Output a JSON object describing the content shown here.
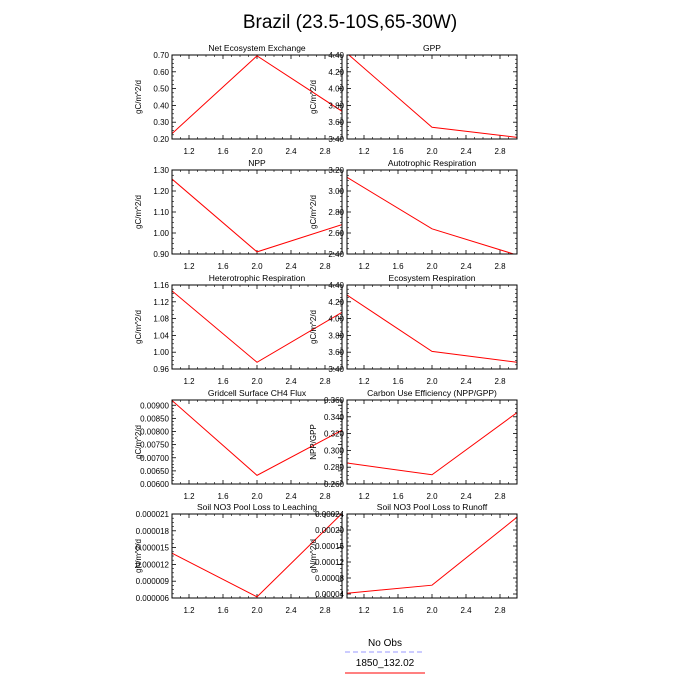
{
  "figure": {
    "title": "Brazil (23.5-10S,65-30W)"
  },
  "legend": {
    "placement": "bottom-center",
    "entries": [
      {
        "label": "No Obs",
        "color": "#9999ff",
        "dash": "dashed"
      },
      {
        "label": "1850_132.02",
        "color": "#ff0000",
        "dash": "solid"
      }
    ]
  },
  "chart_data": [
    {
      "type": "line",
      "title": "Net Ecosystem Exchange",
      "ylabel": "gC/m^2/d",
      "xlim": [
        1,
        3
      ],
      "ylim": [
        0.2,
        0.7
      ],
      "xticks": [
        "1.2",
        "1.6",
        "2.0",
        "2.4",
        "2.8"
      ],
      "yticks": [
        "0.20",
        "0.30",
        "0.40",
        "0.50",
        "0.60",
        "0.70"
      ],
      "grid": false,
      "series": [
        {
          "name": "1850_132.02",
          "color": "#ff0000",
          "x": [
            1,
            2,
            3
          ],
          "y": [
            0.232,
            0.695,
            0.365
          ]
        }
      ]
    },
    {
      "type": "line",
      "title": "GPP",
      "ylabel": "gC/m^2/d",
      "xlim": [
        1,
        3
      ],
      "ylim": [
        3.4,
        4.4
      ],
      "xticks": [
        "1.2",
        "1.6",
        "2.0",
        "2.4",
        "2.8"
      ],
      "yticks": [
        "3.40",
        "3.60",
        "3.80",
        "4.00",
        "4.20",
        "4.40"
      ],
      "grid": false,
      "series": [
        {
          "name": "1850_132.02",
          "color": "#ff0000",
          "x": [
            1,
            2,
            3
          ],
          "y": [
            4.42,
            3.54,
            3.42
          ]
        }
      ]
    },
    {
      "type": "line",
      "title": "NPP",
      "ylabel": "gC/m^2/d",
      "xlim": [
        1,
        3
      ],
      "ylim": [
        0.9,
        1.3
      ],
      "xticks": [
        "1.2",
        "1.6",
        "2.0",
        "2.4",
        "2.8"
      ],
      "yticks": [
        "0.90",
        "1.00",
        "1.10",
        "1.20",
        "1.30"
      ],
      "grid": false,
      "series": [
        {
          "name": "1850_132.02",
          "color": "#ff0000",
          "x": [
            1,
            2,
            3
          ],
          "y": [
            1.257,
            0.91,
            1.04
          ]
        }
      ]
    },
    {
      "type": "line",
      "title": "Autotrophic Respiration",
      "ylabel": "gC/m^2/d",
      "xlim": [
        1,
        3
      ],
      "ylim": [
        2.4,
        3.2
      ],
      "xticks": [
        "1.2",
        "1.6",
        "2.0",
        "2.4",
        "2.8"
      ],
      "yticks": [
        "2.40",
        "2.60",
        "2.80",
        "3.00",
        "3.20"
      ],
      "grid": false,
      "series": [
        {
          "name": "1850_132.02",
          "color": "#ff0000",
          "x": [
            1,
            2,
            3
          ],
          "y": [
            3.13,
            2.64,
            2.39
          ]
        }
      ]
    },
    {
      "type": "line",
      "title": "Heterotrophic Respiration",
      "ylabel": "gC/m^2/d",
      "xlim": [
        1,
        3
      ],
      "ylim": [
        0.96,
        1.16
      ],
      "xticks": [
        "1.2",
        "1.6",
        "2.0",
        "2.4",
        "2.8"
      ],
      "yticks": [
        "0.96",
        "1.00",
        "1.04",
        "1.08",
        "1.12",
        "1.16"
      ],
      "grid": false,
      "series": [
        {
          "name": "1850_132.02",
          "color": "#ff0000",
          "x": [
            1,
            2,
            3
          ],
          "y": [
            1.146,
            0.976,
            1.095
          ]
        }
      ]
    },
    {
      "type": "line",
      "title": "Ecosystem Respiration",
      "ylabel": "gC/m^2/d",
      "xlim": [
        1,
        3
      ],
      "ylim": [
        3.4,
        4.4
      ],
      "xticks": [
        "1.2",
        "1.6",
        "2.0",
        "2.4",
        "2.8"
      ],
      "yticks": [
        "3.40",
        "3.60",
        "3.80",
        "4.00",
        "4.20",
        "4.40"
      ],
      "grid": false,
      "series": [
        {
          "name": "1850_132.02",
          "color": "#ff0000",
          "x": [
            1,
            2,
            3
          ],
          "y": [
            4.28,
            3.61,
            3.48
          ]
        }
      ]
    },
    {
      "type": "line",
      "title": "Gridcell Surface CH4 Flux",
      "ylabel": "gC/m^2/d",
      "xlim": [
        1,
        3
      ],
      "ylim": [
        0.006,
        0.0092
      ],
      "xticks": [
        "1.2",
        "1.6",
        "2.0",
        "2.4",
        "2.8"
      ],
      "yticks": [
        "0.00600",
        "0.00650",
        "0.00700",
        "0.00750",
        "0.00800",
        "0.00850",
        "0.00900"
      ],
      "grid": false,
      "series": [
        {
          "name": "1850_132.02",
          "color": "#ff0000",
          "x": [
            1,
            2,
            3
          ],
          "y": [
            0.00918,
            0.00633,
            0.00805
          ]
        }
      ]
    },
    {
      "type": "line",
      "title": "Carbon Use Efficiency (NPP/GPP)",
      "ylabel": "NPP/GPP",
      "xlim": [
        1,
        3
      ],
      "ylim": [
        0.26,
        0.36
      ],
      "xticks": [
        "1.2",
        "1.6",
        "2.0",
        "2.4",
        "2.8"
      ],
      "yticks": [
        "0.260",
        "0.280",
        "0.300",
        "0.320",
        "0.340",
        "0.360"
      ],
      "grid": false,
      "series": [
        {
          "name": "1850_132.02",
          "color": "#ff0000",
          "x": [
            1,
            2,
            3
          ],
          "y": [
            0.285,
            0.271,
            0.345
          ]
        }
      ]
    },
    {
      "type": "line",
      "title": "Soil NO3 Pool Loss to Leaching",
      "ylabel": "gN/m^2/d",
      "xlim": [
        1,
        3
      ],
      "ylim": [
        6e-06,
        2.1e-05
      ],
      "xticks": [
        "1.2",
        "1.6",
        "2.0",
        "2.4",
        "2.8"
      ],
      "yticks": [
        "0.000006",
        "0.000009",
        "0.000012",
        "0.000015",
        "0.000018",
        "0.000021"
      ],
      "grid": false,
      "series": [
        {
          "name": "1850_132.02",
          "color": "#ff0000",
          "x": [
            1,
            2,
            3
          ],
          "y": [
            1.4e-05,
            6.2e-06,
            2.11e-05
          ]
        }
      ]
    },
    {
      "type": "line",
      "title": "Soil NO3 Pool Loss to Runoff",
      "ylabel": "gN/m^2/d",
      "xlim": [
        1,
        3
      ],
      "ylim": [
        3e-05,
        0.00024
      ],
      "xticks": [
        "1.2",
        "1.6",
        "2.0",
        "2.4",
        "2.8"
      ],
      "yticks": [
        "0.00004",
        "0.00008",
        "0.00012",
        "0.00016",
        "0.00020",
        "0.00024"
      ],
      "grid": false,
      "series": [
        {
          "name": "1850_132.02",
          "color": "#ff0000",
          "x": [
            1,
            2,
            3
          ],
          "y": [
            4.2e-05,
            6.2e-05,
            0.000232
          ]
        }
      ]
    }
  ]
}
